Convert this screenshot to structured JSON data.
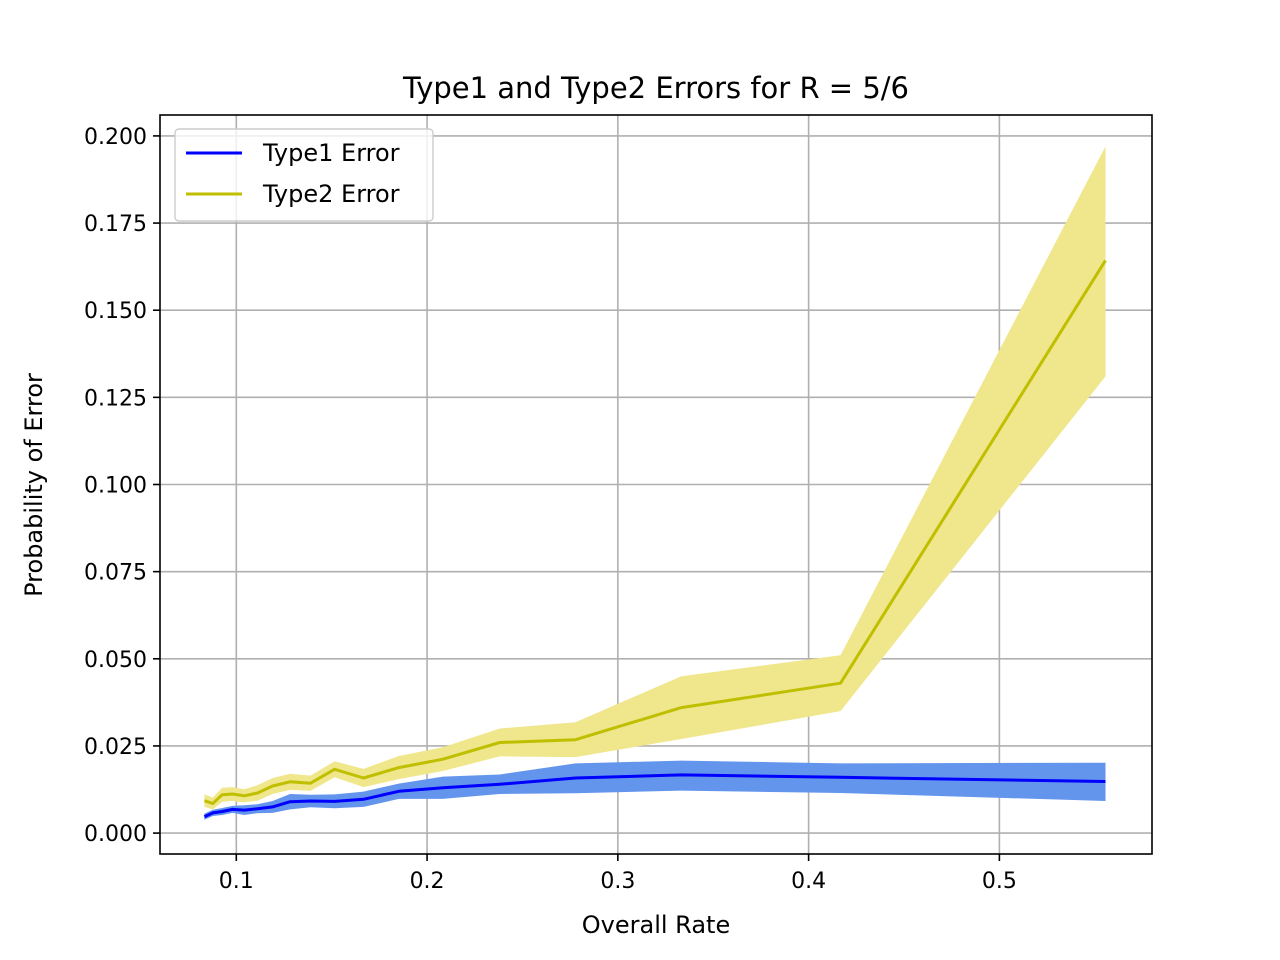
{
  "chart_data": {
    "type": "line",
    "title": "Type1 and Type2 Errors for R = 5/6",
    "xlabel": "Overall Rate",
    "ylabel": "Probability of Error",
    "xlim": [
      0.06,
      0.58
    ],
    "ylim": [
      -0.006,
      0.206
    ],
    "xticks": [
      0.1,
      0.2,
      0.3,
      0.4,
      0.5
    ],
    "xtick_labels": [
      "0.1",
      "0.2",
      "0.3",
      "0.4",
      "0.5"
    ],
    "yticks": [
      0.0,
      0.025,
      0.05,
      0.075,
      0.1,
      0.125,
      0.15,
      0.175,
      0.2
    ],
    "ytick_labels": [
      "0.000",
      "0.025",
      "0.050",
      "0.075",
      "0.100",
      "0.125",
      "0.150",
      "0.175",
      "0.200"
    ],
    "grid": true,
    "legend_position": "top-left",
    "x": [
      0.0833,
      0.0877,
      0.0926,
      0.098,
      0.1042,
      0.1111,
      0.119,
      0.1282,
      0.1389,
      0.1515,
      0.1667,
      0.1852,
      0.2083,
      0.2381,
      0.2778,
      0.3333,
      0.4167,
      0.5556
    ],
    "series": [
      {
        "name": "Type1 Error",
        "color": "#0000ff",
        "band_color": "#6495ed",
        "values": [
          0.0047,
          0.0058,
          0.0062,
          0.0068,
          0.0066,
          0.007,
          0.0075,
          0.009,
          0.0092,
          0.0091,
          0.0097,
          0.012,
          0.013,
          0.014,
          0.0158,
          0.0167,
          0.016,
          0.0148
        ],
        "lower": [
          0.0038,
          0.0049,
          0.0052,
          0.0058,
          0.0052,
          0.0057,
          0.0058,
          0.0068,
          0.0074,
          0.0071,
          0.0075,
          0.0098,
          0.0098,
          0.0112,
          0.0114,
          0.0122,
          0.0115,
          0.0092
        ],
        "upper": [
          0.0056,
          0.0067,
          0.0072,
          0.0078,
          0.008,
          0.0083,
          0.0092,
          0.0112,
          0.011,
          0.0111,
          0.0119,
          0.0142,
          0.0162,
          0.0168,
          0.02,
          0.0208,
          0.02,
          0.0202
        ]
      },
      {
        "name": "Type2 Error",
        "color": "#bfbf00",
        "band_color": "#f0e68c",
        "values": [
          0.0093,
          0.0085,
          0.011,
          0.0112,
          0.0107,
          0.0115,
          0.0135,
          0.0147,
          0.0143,
          0.0183,
          0.0158,
          0.0188,
          0.0212,
          0.026,
          0.0268,
          0.036,
          0.043,
          0.1643
        ],
        "lower": [
          0.0075,
          0.0068,
          0.009,
          0.0092,
          0.0088,
          0.0093,
          0.0112,
          0.0124,
          0.0121,
          0.016,
          0.0132,
          0.0155,
          0.0178,
          0.022,
          0.0218,
          0.027,
          0.035,
          0.131
        ],
        "upper": [
          0.0111,
          0.0102,
          0.013,
          0.0132,
          0.0126,
          0.0137,
          0.0158,
          0.017,
          0.0165,
          0.0206,
          0.0184,
          0.0221,
          0.0246,
          0.03,
          0.0318,
          0.045,
          0.051,
          0.197
        ]
      }
    ]
  }
}
